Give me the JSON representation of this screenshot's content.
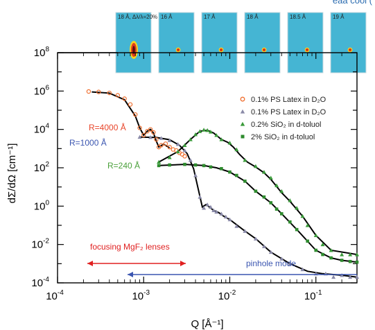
{
  "corner_text": "eaa cool (",
  "chart_data": {
    "type": "scatter",
    "title": "",
    "xlabel": "Q [Å⁻¹]",
    "ylabel": "dΣ/dΩ [cm⁻¹]",
    "xscale": "log",
    "yscale": "log",
    "xlim": [
      0.0001,
      0.3
    ],
    "ylim": [
      0.0001,
      100000000
    ],
    "x_ticks": [
      {
        "value": 0.0001,
        "base": "10",
        "exp": "-4"
      },
      {
        "value": 0.001,
        "base": "10",
        "exp": "-3"
      },
      {
        "value": 0.01,
        "base": "10",
        "exp": "-2"
      },
      {
        "value": 0.1,
        "base": "10",
        "exp": "-1"
      }
    ],
    "y_ticks": [
      {
        "value": 0.0001,
        "base": "10",
        "exp": "-4"
      },
      {
        "value": 0.01,
        "base": "10",
        "exp": "-2"
      },
      {
        "value": 1,
        "base": "10",
        "exp": "0"
      },
      {
        "value": 100,
        "base": "10",
        "exp": "2"
      },
      {
        "value": 10000,
        "base": "10",
        "exp": "4"
      },
      {
        "value": 1000000,
        "base": "10",
        "exp": "6"
      },
      {
        "value": 100000000,
        "base": "10",
        "exp": "8"
      }
    ],
    "grid": false,
    "legend_position": "right",
    "series": [
      {
        "name": "0.1% PS Latex in D₂O",
        "marker": "circle-open",
        "color": "#f07030",
        "x": [
          0.00023,
          0.0003,
          0.0004,
          0.0005,
          0.0006,
          0.0007,
          0.0008,
          0.0009,
          0.001,
          0.0011,
          0.0012,
          0.0013,
          0.0014,
          0.0015,
          0.0016,
          0.0018,
          0.002,
          0.0022,
          0.0024,
          0.0026,
          0.0028,
          0.003
        ],
        "y": [
          950000,
          900000,
          800000,
          600000,
          400000,
          200000,
          60000,
          12000,
          5000,
          8000,
          10000,
          7000,
          3000,
          1200,
          1500,
          1800,
          1200,
          900,
          800,
          600,
          500,
          400
        ]
      },
      {
        "name": "0.1% PS Latex in D₂O",
        "marker": "triangle",
        "color": "#8a8aa8",
        "x": [
          0.0009,
          0.0012,
          0.0016,
          0.002,
          0.0025,
          0.003,
          0.0035,
          0.004,
          0.0045,
          0.005,
          0.0055,
          0.006,
          0.0065,
          0.007,
          0.008,
          0.009,
          0.01,
          0.012,
          0.015,
          0.02,
          0.025,
          0.03,
          0.04,
          0.05,
          0.07,
          0.1,
          0.13,
          0.16,
          0.2,
          0.25,
          0.3
        ],
        "y": [
          4000,
          3900,
          3500,
          2700,
          1700,
          800,
          250,
          40,
          3,
          0.8,
          1.2,
          0.9,
          0.6,
          0.5,
          0.4,
          0.28,
          0.2,
          0.09,
          0.05,
          0.02,
          0.008,
          0.004,
          0.0018,
          0.001,
          0.0005,
          0.0003,
          0.0003,
          0.0002,
          0.00025,
          0.0002,
          0.0002
        ]
      },
      {
        "name": "0.2% SiO₂ in d-toluol",
        "marker": "triangle",
        "color": "#3a9a3a",
        "x": [
          0.0015,
          0.002,
          0.0025,
          0.003,
          0.0035,
          0.004,
          0.0045,
          0.005,
          0.0055,
          0.006,
          0.007,
          0.008,
          0.01,
          0.012,
          0.015,
          0.02,
          0.025,
          0.03,
          0.035,
          0.04,
          0.05,
          0.06,
          0.07,
          0.08,
          0.1,
          0.12,
          0.15,
          0.2,
          0.25,
          0.3
        ],
        "y": [
          200,
          350,
          700,
          1500,
          3000,
          5500,
          8000,
          9500,
          9000,
          7500,
          5000,
          3000,
          2000,
          900,
          250,
          120,
          60,
          30,
          12,
          6,
          2,
          0.8,
          0.3,
          0.1,
          0.03,
          0.01,
          0.005,
          0.003,
          0.003,
          0.003
        ]
      },
      {
        "name": "2% SiO₂ in d-toluol",
        "marker": "square",
        "color": "#2e8b2e",
        "x": [
          0.0015,
          0.002,
          0.003,
          0.004,
          0.005,
          0.006,
          0.008,
          0.01,
          0.012,
          0.015,
          0.02,
          0.025,
          0.03,
          0.035,
          0.04,
          0.05,
          0.06,
          0.08,
          0.1,
          0.12,
          0.15,
          0.2,
          0.25,
          0.3
        ],
        "y": [
          130,
          140,
          150,
          140,
          130,
          110,
          90,
          60,
          40,
          20,
          6,
          3,
          1.5,
          0.7,
          0.4,
          0.15,
          0.06,
          0.015,
          0.005,
          0.003,
          0.002,
          0.0015,
          0.0013,
          0.0012
        ]
      }
    ],
    "fit_curves": [
      {
        "x": [
          0.00025,
          0.0004,
          0.0006,
          0.0008,
          0.0009,
          0.001,
          0.0011,
          0.0012,
          0.0013,
          0.0014,
          0.0015,
          0.0017,
          0.002
        ],
        "y": [
          900000,
          780000,
          350000,
          50000,
          12000,
          5000,
          8000,
          10000,
          6500,
          2500,
          1200,
          1700,
          1100
        ]
      },
      {
        "x": [
          0.0009,
          0.0014,
          0.002,
          0.0026,
          0.0032,
          0.0038,
          0.0043,
          0.0048,
          0.0053,
          0.0058,
          0.0065,
          0.0075,
          0.0085,
          0.01,
          0.015,
          0.02,
          0.03,
          0.05,
          0.08,
          0.12,
          0.2,
          0.3
        ],
        "y": [
          4000,
          3800,
          2900,
          1500,
          550,
          90,
          8,
          0.9,
          1.2,
          0.9,
          0.6,
          0.45,
          0.3,
          0.2,
          0.05,
          0.02,
          0.004,
          0.001,
          0.0004,
          0.0003,
          0.00025,
          0.0002
        ]
      },
      {
        "x": [
          0.0015,
          0.0025,
          0.0035,
          0.0045,
          0.0055,
          0.0065,
          0.008,
          0.0095,
          0.011,
          0.013,
          0.016,
          0.02,
          0.025,
          0.03,
          0.04,
          0.05,
          0.07,
          0.1,
          0.15,
          0.3
        ],
        "y": [
          200,
          700,
          3000,
          8000,
          9000,
          6500,
          3000,
          2100,
          1200,
          500,
          200,
          110,
          55,
          25,
          5,
          1.8,
          0.3,
          0.03,
          0.005,
          0.003
        ]
      },
      {
        "x": [
          0.0015,
          0.003,
          0.005,
          0.007,
          0.01,
          0.015,
          0.02,
          0.03,
          0.04,
          0.06,
          0.1,
          0.15,
          0.2,
          0.3
        ],
        "y": [
          130,
          150,
          130,
          100,
          60,
          20,
          6,
          1.5,
          0.4,
          0.06,
          0.005,
          0.002,
          0.0015,
          0.0012
        ]
      }
    ],
    "annotations": [
      {
        "text": "R=4000 Å",
        "color": "#e8452a"
      },
      {
        "text": "R=1000 Å",
        "color": "#3a55b0"
      },
      {
        "text": "R=240 Å",
        "color": "#4aa03a"
      },
      {
        "text": "focusing MgF₂ lenses",
        "color": "#e02020"
      },
      {
        "text": "pinhole mode",
        "color": "#3a55b0"
      }
    ],
    "detector_images": [
      {
        "label": "18 Å, Δλ/λ=20%"
      },
      {
        "label": "16 Å"
      },
      {
        "label": "17 Å"
      },
      {
        "label": "18 Å"
      },
      {
        "label": "18.5 Å"
      },
      {
        "label": "19 Å"
      }
    ]
  }
}
